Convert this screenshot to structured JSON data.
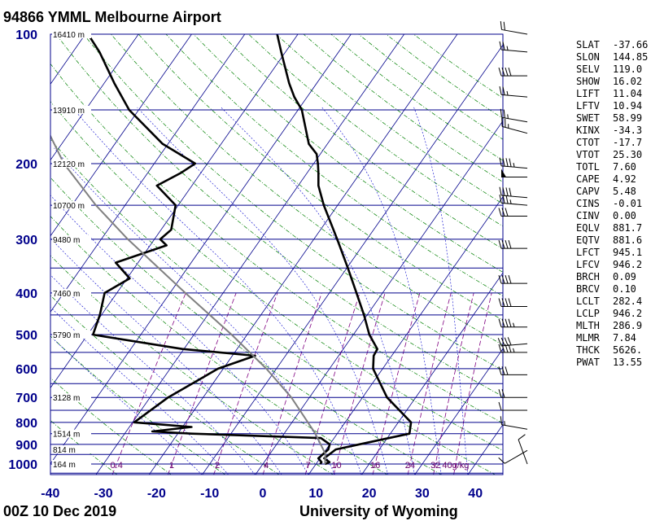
{
  "header": {
    "title": "94866 YMML Melbourne Airport"
  },
  "footer": {
    "left": "00Z 10 Dec 2019",
    "right": "University of Wyoming"
  },
  "colors": {
    "isobar": "#00008b",
    "isotherm": "#00008b",
    "dry_adiabat": "#008000",
    "moist_adiabat": "#0000cd",
    "mixing_ratio": "#800080",
    "sounding": "#000000",
    "parcel": "#808080"
  },
  "indices": [
    {
      "key": "SLAT",
      "value": "-37.66"
    },
    {
      "key": "SLON",
      "value": "144.85"
    },
    {
      "key": "SELV",
      "value": "119.0"
    },
    {
      "key": "SHOW",
      "value": "16.02"
    },
    {
      "key": "LIFT",
      "value": "11.04"
    },
    {
      "key": "LFTV",
      "value": "10.94"
    },
    {
      "key": "SWET",
      "value": "58.99"
    },
    {
      "key": "KINX",
      "value": "-34.3"
    },
    {
      "key": "CTOT",
      "value": "-17.7"
    },
    {
      "key": "VTOT",
      "value": "25.30"
    },
    {
      "key": "TOTL",
      "value": "7.60"
    },
    {
      "key": "CAPE",
      "value": "4.92"
    },
    {
      "key": "CAPV",
      "value": "5.48"
    },
    {
      "key": "CINS",
      "value": "-0.01"
    },
    {
      "key": "CINV",
      "value": "0.00"
    },
    {
      "key": "EQLV",
      "value": "881.7"
    },
    {
      "key": "EQTV",
      "value": "881.6"
    },
    {
      "key": "LFCT",
      "value": "945.1"
    },
    {
      "key": "LFCV",
      "value": "946.2"
    },
    {
      "key": "BRCH",
      "value": "0.09"
    },
    {
      "key": "BRCV",
      "value": "0.10"
    },
    {
      "key": "LCLT",
      "value": "282.4"
    },
    {
      "key": "LCLP",
      "value": "946.2"
    },
    {
      "key": "MLTH",
      "value": "286.9"
    },
    {
      "key": "MLMR",
      "value": "7.84"
    },
    {
      "key": "THCK",
      "value": "5626."
    },
    {
      "key": "PWAT",
      "value": "13.55"
    }
  ],
  "chart_data": {
    "type": "line",
    "subtype": "skew-t log-p",
    "title": "94866 YMML Melbourne Airport",
    "xlabel": "",
    "ylabel": "",
    "x_unit": "deg C",
    "y_unit": "hPa",
    "y_scale": "log",
    "y_inverted": true,
    "xlim": [
      -40,
      45
    ],
    "ylim": [
      1050,
      100
    ],
    "pressure_ticks": [
      100,
      200,
      300,
      400,
      500,
      600,
      700,
      800,
      900,
      1000
    ],
    "temperature_ticks": [
      -40,
      -30,
      -20,
      -10,
      0,
      10,
      20,
      30,
      40
    ],
    "height_labels": [
      {
        "p": 100,
        "label": "16410 m"
      },
      {
        "p": 150,
        "label": "13910 m"
      },
      {
        "p": 200,
        "label": "12120 m"
      },
      {
        "p": 250,
        "label": "10700 m"
      },
      {
        "p": 300,
        "label": "9480 m"
      },
      {
        "p": 400,
        "label": "7460 m"
      },
      {
        "p": 500,
        "label": "5790 m"
      },
      {
        "p": 700,
        "label": "3128 m"
      },
      {
        "p": 850,
        "label": "1514 m"
      },
      {
        "p": 925,
        "label": "814 m"
      },
      {
        "p": 1000,
        "label": "164 m"
      }
    ],
    "mixing_ratio_labels": [
      "0.4",
      "1",
      "2",
      "4",
      "7",
      "10",
      "16",
      "24",
      "32",
      "40g/kg"
    ],
    "series": [
      {
        "key": "temperature",
        "points": [
          {
            "p": 1000,
            "t": 11.7
          },
          {
            "p": 990,
            "t": 12.3
          },
          {
            "p": 970,
            "t": 10.8
          },
          {
            "p": 925,
            "t": 11.8
          },
          {
            "p": 900,
            "t": 15.6
          },
          {
            "p": 850,
            "t": 23.6
          },
          {
            "p": 800,
            "t": 22.4
          },
          {
            "p": 700,
            "t": 14.6
          },
          {
            "p": 600,
            "t": 8.2
          },
          {
            "p": 560,
            "t": 6.6
          },
          {
            "p": 540,
            "t": 6.4
          },
          {
            "p": 500,
            "t": 3.0
          },
          {
            "p": 450,
            "t": -0.6
          },
          {
            "p": 400,
            "t": -4.9
          },
          {
            "p": 350,
            "t": -9.8
          },
          {
            "p": 300,
            "t": -15.6
          },
          {
            "p": 250,
            "t": -22.6
          },
          {
            "p": 225,
            "t": -26.2
          },
          {
            "p": 210,
            "t": -27.9
          },
          {
            "p": 200,
            "t": -29.2
          },
          {
            "p": 190,
            "t": -30.7
          },
          {
            "p": 180,
            "t": -33.5
          },
          {
            "p": 150,
            "t": -39.3
          },
          {
            "p": 140,
            "t": -42.4
          },
          {
            "p": 130,
            "t": -45.2
          },
          {
            "p": 110,
            "t": -50.8
          },
          {
            "p": 100,
            "t": -53.9
          }
        ]
      },
      {
        "key": "dewpoint",
        "points": [
          {
            "p": 1000,
            "t": 10.8
          },
          {
            "p": 990,
            "t": 10.8
          },
          {
            "p": 970,
            "t": 9.7
          },
          {
            "p": 925,
            "t": 10.4
          },
          {
            "p": 900,
            "t": 10.0
          },
          {
            "p": 870,
            "t": 7.5
          },
          {
            "p": 850,
            "t": -17.4
          },
          {
            "p": 840,
            "t": -25.1
          },
          {
            "p": 820,
            "t": -18.3
          },
          {
            "p": 800,
            "t": -29.7
          },
          {
            "p": 700,
            "t": -26.6
          },
          {
            "p": 600,
            "t": -21.0
          },
          {
            "p": 560,
            "t": -15.7
          },
          {
            "p": 540,
            "t": -30.3
          },
          {
            "p": 500,
            "t": -49.0
          },
          {
            "p": 450,
            "t": -50.3
          },
          {
            "p": 400,
            "t": -52.3
          },
          {
            "p": 370,
            "t": -49.5
          },
          {
            "p": 340,
            "t": -54.2
          },
          {
            "p": 310,
            "t": -46.9
          },
          {
            "p": 300,
            "t": -48.9
          },
          {
            "p": 285,
            "t": -48.1
          },
          {
            "p": 250,
            "t": -50.5
          },
          {
            "p": 225,
            "t": -56.6
          },
          {
            "p": 210,
            "t": -53.7
          },
          {
            "p": 200,
            "t": -52.3
          },
          {
            "p": 180,
            "t": -61.0
          },
          {
            "p": 150,
            "t": -71.8
          },
          {
            "p": 130,
            "t": -78.1
          },
          {
            "p": 110,
            "t": -85.0
          },
          {
            "p": 100,
            "t": -89.5
          }
        ]
      },
      {
        "key": "parcel",
        "points": [
          {
            "p": 1000,
            "t": 11.7
          },
          {
            "p": 946,
            "t": 10.4
          },
          {
            "p": 900,
            "t": 8.3
          },
          {
            "p": 850,
            "t": 5.9
          },
          {
            "p": 700,
            "t": -3.4
          },
          {
            "p": 600,
            "t": -11.9
          },
          {
            "p": 500,
            "t": -22.9
          },
          {
            "p": 400,
            "t": -37.1
          },
          {
            "p": 300,
            "t": -55.0
          },
          {
            "p": 250,
            "t": -65.5
          },
          {
            "p": 200,
            "t": -77.0
          },
          {
            "p": 150,
            "t": -89.0
          },
          {
            "p": 125,
            "t": -95.0
          },
          {
            "p": 100,
            "t": -101.0
          }
        ]
      }
    ],
    "wind_barbs": [
      {
        "p": 100,
        "dir": 280,
        "spd": 20
      },
      {
        "p": 110,
        "dir": 275,
        "spd": 25
      },
      {
        "p": 125,
        "dir": 270,
        "spd": 40
      },
      {
        "p": 140,
        "dir": 275,
        "spd": 25
      },
      {
        "p": 160,
        "dir": 280,
        "spd": 25
      },
      {
        "p": 170,
        "dir": 285,
        "spd": 25
      },
      {
        "p": 205,
        "dir": 275,
        "spd": 45
      },
      {
        "p": 215,
        "dir": 270,
        "spd": 50
      },
      {
        "p": 240,
        "dir": 275,
        "spd": 40
      },
      {
        "p": 250,
        "dir": 275,
        "spd": 35
      },
      {
        "p": 265,
        "dir": 270,
        "spd": 30
      },
      {
        "p": 315,
        "dir": 270,
        "spd": 40
      },
      {
        "p": 380,
        "dir": 270,
        "spd": 40
      },
      {
        "p": 430,
        "dir": 270,
        "spd": 40
      },
      {
        "p": 480,
        "dir": 270,
        "spd": 45
      },
      {
        "p": 525,
        "dir": 265,
        "spd": 40
      },
      {
        "p": 550,
        "dir": 270,
        "spd": 45
      },
      {
        "p": 620,
        "dir": 270,
        "spd": 30
      },
      {
        "p": 700,
        "dir": 270,
        "spd": 20
      },
      {
        "p": 750,
        "dir": 270,
        "spd": 10
      },
      {
        "p": 830,
        "dir": 280,
        "spd": 15
      },
      {
        "p": 930,
        "dir": 240,
        "spd": 10
      },
      {
        "p": 1000,
        "dir": 340,
        "spd": 10
      }
    ]
  }
}
